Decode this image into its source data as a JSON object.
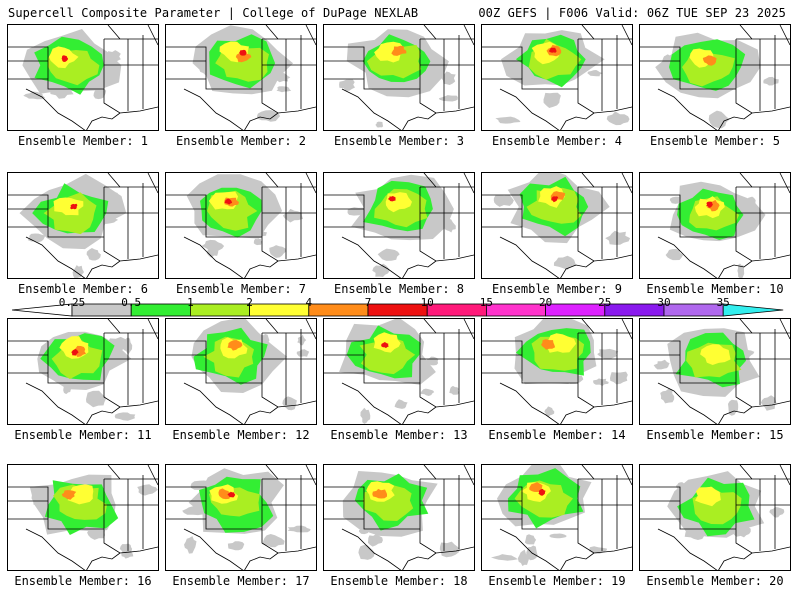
{
  "header": {
    "left": "Supercell Composite Parameter | College of DuPage NEXLAB",
    "right": "00Z GEFS | F006 Valid: 06Z TUE SEP 23 2025"
  },
  "label_prefix": "Ensemble Member: ",
  "members": [
    1,
    2,
    3,
    4,
    5,
    6,
    7,
    8,
    9,
    10,
    11,
    12,
    13,
    14,
    15,
    16,
    17,
    18,
    19,
    20
  ],
  "colorbar": {
    "ticks": [
      "0.25",
      "0.5",
      "1",
      "2",
      "4",
      "7",
      "10",
      "15",
      "20",
      "25",
      "30",
      "35"
    ],
    "colors": [
      "#ffffff",
      "#c8c8c8",
      "#33ee33",
      "#aaee22",
      "#ffff33",
      "#ff8c1a",
      "#ee1111",
      "#ff1a7a",
      "#ff33cc",
      "#dd22ff",
      "#8a1aee",
      "#b068ee",
      "#33eeee"
    ]
  },
  "map_colors": {
    "border": "#000000",
    "contour_025": "#c8c8c8",
    "contour_05": "#33ee33",
    "contour_1": "#aaee22",
    "contour_2": "#ffff33",
    "contour_4": "#ff8c1a",
    "contour_7": "#ee1111"
  }
}
